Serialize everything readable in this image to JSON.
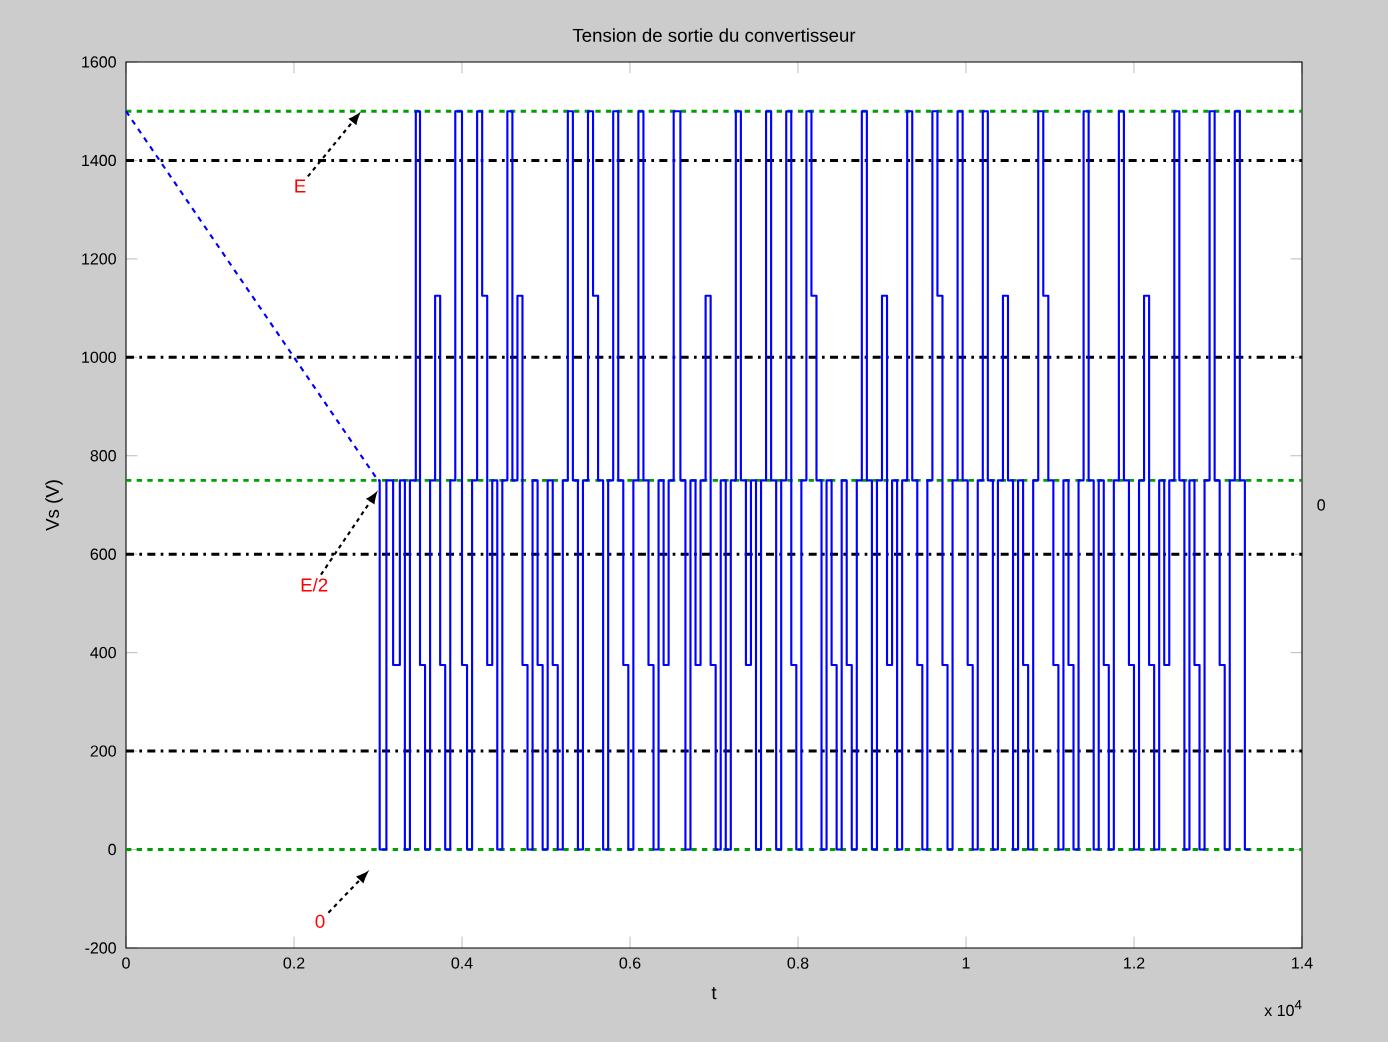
{
  "chart_data": {
    "type": "step",
    "title": "Tension de sortie du convertisseur",
    "xlabel": "t",
    "ylabel": "Vs (V)",
    "xlim": [
      0,
      1.4
    ],
    "ylim": [
      -200,
      1600
    ],
    "xticks": [
      0,
      0.2,
      0.4,
      0.6,
      0.8,
      1,
      1.2,
      1.4
    ],
    "yticks": [
      -200,
      0,
      200,
      400,
      600,
      800,
      1000,
      1200,
      1400,
      1600
    ],
    "grid": false,
    "series": [
      {
        "type": "line",
        "color": "#0000ff",
        "line_style": "dotted",
        "x": [
          0,
          0.3
        ],
        "values": [
          1500,
          750
        ]
      },
      {
        "color": "#0000ff",
        "line_style": "solid",
        "x": [
          0.3,
          0.302,
          0.31,
          0.318,
          0.326,
          0.332,
          0.338,
          0.345,
          0.35,
          0.356,
          0.362,
          0.368,
          0.374,
          0.38,
          0.386,
          0.392,
          0.4,
          0.406,
          0.412,
          0.418,
          0.424,
          0.43,
          0.436,
          0.442,
          0.448,
          0.454,
          0.46,
          0.466,
          0.472,
          0.478,
          0.484,
          0.49,
          0.496,
          0.502,
          0.508,
          0.514,
          0.52,
          0.526,
          0.532,
          0.538,
          0.544,
          0.55,
          0.556,
          0.562,
          0.568,
          0.574,
          0.58,
          0.586,
          0.592,
          0.598,
          0.604,
          0.61,
          0.616,
          0.622,
          0.628,
          0.634,
          0.64,
          0.646,
          0.652,
          0.66,
          0.666,
          0.672,
          0.678,
          0.684,
          0.69,
          0.696,
          0.702,
          0.708,
          0.714,
          0.72,
          0.726,
          0.732,
          0.738,
          0.744,
          0.75,
          0.756,
          0.762,
          0.768,
          0.774,
          0.78,
          0.786,
          0.792,
          0.798,
          0.804,
          0.81,
          0.816,
          0.822,
          0.828,
          0.834,
          0.84,
          0.846,
          0.852,
          0.858,
          0.864,
          0.87,
          0.876,
          0.882,
          0.888,
          0.894,
          0.9,
          0.906,
          0.912,
          0.918,
          0.924,
          0.93,
          0.936,
          0.942,
          0.948,
          0.954,
          0.96,
          0.966,
          0.972,
          0.978,
          0.984,
          0.99,
          0.996,
          1.002,
          1.008,
          1.014,
          1.02,
          1.026,
          1.032,
          1.038,
          1.044,
          1.05,
          1.056,
          1.062,
          1.068,
          1.074,
          1.08,
          1.086,
          1.092,
          1.098,
          1.104,
          1.11,
          1.116,
          1.122,
          1.128,
          1.134,
          1.14,
          1.146,
          1.152,
          1.158,
          1.164,
          1.17,
          1.176,
          1.182,
          1.188,
          1.194,
          1.2,
          1.206,
          1.212,
          1.218,
          1.224,
          1.23,
          1.236,
          1.242,
          1.248,
          1.254,
          1.26,
          1.266,
          1.272,
          1.278,
          1.284,
          1.29,
          1.296,
          1.302,
          1.308,
          1.314,
          1.32,
          1.326,
          1.332,
          1.338
        ],
        "values": [
          750,
          0,
          750,
          375,
          750,
          0,
          750,
          1500,
          375,
          0,
          750,
          1125,
          375,
          0,
          750,
          1500,
          375,
          0,
          750,
          1500,
          1125,
          375,
          750,
          0,
          750,
          1500,
          750,
          1125,
          375,
          0,
          750,
          375,
          0,
          750,
          375,
          0,
          750,
          1500,
          750,
          0,
          750,
          1500,
          1125,
          750,
          0,
          750,
          1500,
          750,
          375,
          0,
          750,
          1500,
          750,
          375,
          0,
          750,
          375,
          750,
          1500,
          750,
          0,
          750,
          375,
          750,
          1125,
          375,
          0,
          750,
          0,
          750,
          1500,
          750,
          375,
          750,
          0,
          750,
          1500,
          750,
          0,
          750,
          1500,
          375,
          0,
          750,
          1500,
          1125,
          750,
          0,
          750,
          375,
          0,
          750,
          375,
          0,
          750,
          1500,
          750,
          0,
          750,
          1125,
          375,
          750,
          0,
          750,
          1500,
          750,
          375,
          0,
          750,
          1500,
          1125,
          375,
          0,
          750,
          1500,
          750,
          375,
          0,
          750,
          1500,
          750,
          0,
          750,
          1125,
          750,
          0,
          750,
          375,
          0,
          750,
          1500,
          1125,
          750,
          375,
          0,
          750,
          375,
          0,
          750,
          1500,
          750,
          0,
          750,
          375,
          0,
          750,
          1500,
          750,
          375,
          0,
          750,
          1125,
          375,
          0,
          750,
          375,
          750,
          1500,
          750,
          0,
          750,
          375,
          0,
          750,
          1500,
          750,
          375,
          0,
          750,
          1500,
          750,
          0,
          0
        ]
      }
    ],
    "ref_lines": [
      {
        "axis": "y",
        "value": 0,
        "color": "#00a000",
        "line_style": "dotted"
      },
      {
        "axis": "y",
        "value": 750,
        "color": "#00a000",
        "line_style": "dotted"
      },
      {
        "axis": "y",
        "value": 1500,
        "color": "#00a000",
        "line_style": "dotted"
      },
      {
        "axis": "y",
        "value": 200,
        "color": "#000000",
        "line_style": "dashed"
      },
      {
        "axis": "y",
        "value": 600,
        "color": "#000000",
        "line_style": "dashed"
      },
      {
        "axis": "y",
        "value": 1000,
        "color": "#000000",
        "line_style": "dashed"
      },
      {
        "axis": "y",
        "value": 1400,
        "color": "#000000",
        "line_style": "dashed"
      }
    ],
    "annotations": [
      {
        "text": "E",
        "x": 0.28,
        "y": 1500
      },
      {
        "text": "E/2",
        "x": 0.3,
        "y": 730
      },
      "0",
      "x 10$^{4}$",
      "0"
    ]
  }
}
